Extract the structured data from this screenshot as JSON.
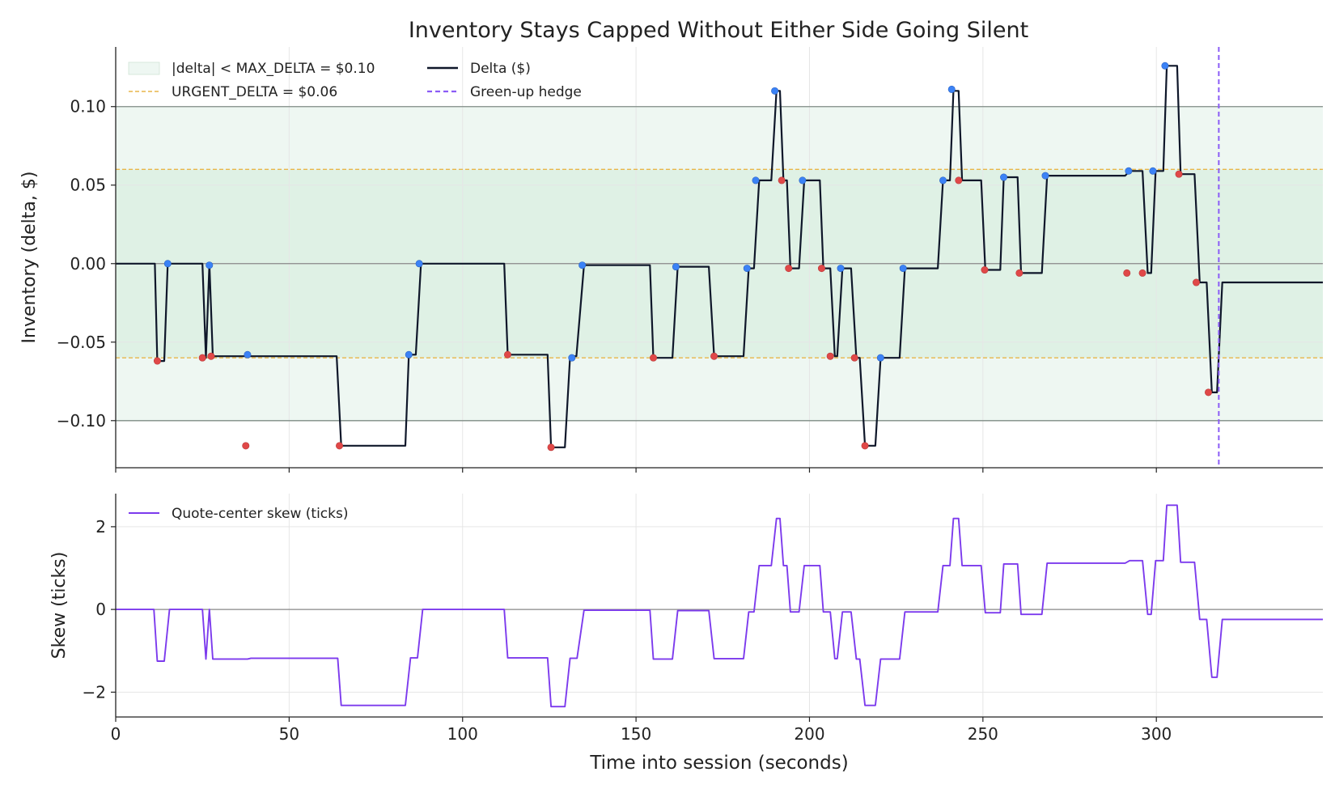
{
  "figure": {
    "title": "Inventory Stays Capped Without Either Side Going Silent"
  },
  "colors": {
    "delta_line": "#0f172a",
    "band_outer": "#eef7f2",
    "band_inner": "#dff1e5",
    "urgent_line": "#e8b64a",
    "hedge_line": "#8b5cf6",
    "skew_line": "#7c3aed",
    "bid_fill": "#3b82f6",
    "ask_fill": "#e04848",
    "ref_line": "#888888",
    "grid": "#e6e6e6"
  },
  "chart_data": [
    {
      "type": "line",
      "ylabel": "Inventory (delta, $)",
      "xlim": [
        0,
        348
      ],
      "ylim": [
        -0.13,
        0.138
      ],
      "yticks": [
        0.1,
        0.05,
        0.0,
        -0.05,
        -0.1
      ],
      "ytick_labels": [
        "0.10",
        "0.05",
        "0.00",
        "−0.05",
        "−0.10"
      ],
      "xticks": [
        0,
        50,
        100,
        150,
        200,
        250,
        300
      ],
      "grid": true,
      "max_delta": 0.1,
      "urgent_delta": 0.06,
      "hedge_time": 318,
      "legend": {
        "band": "|delta| < MAX_DELTA = $0.10",
        "urgent": "URGENT_DELTA = $0.06",
        "delta": "Delta ($)",
        "hedge": "Green-up hedge"
      },
      "series": [
        {
          "name": "Delta ($)",
          "x": [
            0,
            11.3,
            12,
            14,
            15,
            25,
            26,
            27,
            28,
            63.7,
            65,
            83.5,
            84.5,
            86.5,
            88,
            112,
            113,
            124.5,
            125.5,
            129.5,
            131,
            132.8,
            135,
            154,
            155,
            160.5,
            162,
            171,
            172.5,
            181,
            182.5,
            184,
            185.5,
            189,
            190.5,
            191.5,
            192.5,
            193.5,
            194.5,
            197,
            198.5,
            203,
            204,
            206,
            207.3,
            208,
            209.5,
            212,
            213.5,
            214.5,
            216,
            219,
            220.5,
            226,
            227.5,
            237,
            238.5,
            240.5,
            241.5,
            243,
            244,
            249.5,
            250.7,
            255,
            256,
            260,
            261,
            267,
            268.5,
            291,
            292.3,
            296,
            297.5,
            298.5,
            299.8,
            302,
            303,
            306,
            307,
            311,
            312.5,
            314.5,
            316,
            317.5,
            319,
            348
          ],
          "y": [
            0,
            0,
            -0.062,
            -0.062,
            0,
            0,
            -0.06,
            0,
            -0.059,
            -0.059,
            -0.116,
            -0.116,
            -0.058,
            -0.058,
            0,
            0,
            -0.058,
            -0.058,
            -0.117,
            -0.117,
            -0.059,
            -0.059,
            -0.001,
            -0.001,
            -0.06,
            -0.06,
            -0.002,
            -0.002,
            -0.059,
            -0.059,
            -0.003,
            -0.003,
            0.053,
            0.053,
            0.11,
            0.11,
            0.053,
            0.053,
            -0.003,
            -0.003,
            0.053,
            0.053,
            -0.003,
            -0.003,
            -0.059,
            -0.059,
            -0.003,
            -0.003,
            -0.06,
            -0.06,
            -0.116,
            -0.116,
            -0.06,
            -0.06,
            -0.003,
            -0.003,
            0.053,
            0.053,
            0.11,
            0.11,
            0.053,
            0.053,
            -0.004,
            -0.004,
            0.055,
            0.055,
            -0.006,
            -0.006,
            0.056,
            0.056,
            0.059,
            0.059,
            -0.006,
            -0.006,
            0.059,
            0.059,
            0.126,
            0.126,
            0.057,
            0.057,
            -0.012,
            -0.012,
            -0.082,
            -0.082,
            -0.012,
            -0.012
          ]
        },
        {
          "name": "bid fills",
          "x": [
            15,
            27,
            38,
            84.5,
            87.5,
            131.5,
            134.5,
            161.5,
            182,
            184.5,
            190,
            198,
            209,
            220.5,
            227,
            238.5,
            241,
            256,
            268,
            292,
            299,
            302.5
          ],
          "y": [
            0,
            -0.001,
            -0.058,
            -0.058,
            0,
            -0.06,
            -0.001,
            -0.002,
            -0.003,
            0.053,
            0.11,
            0.053,
            -0.003,
            -0.06,
            -0.003,
            0.053,
            0.111,
            0.055,
            0.056,
            0.059,
            0.059,
            0.126
          ]
        },
        {
          "name": "ask fills",
          "x": [
            12,
            25,
            27.5,
            37.5,
            64.5,
            113,
            125.5,
            155,
            172.5,
            192,
            194,
            203.5,
            206,
            213,
            216,
            243,
            250.5,
            260.5,
            291.5,
            296,
            306.5,
            311.5,
            315
          ],
          "y": [
            -0.062,
            -0.06,
            -0.059,
            -0.116,
            -0.116,
            -0.058,
            -0.117,
            -0.06,
            -0.059,
            0.053,
            -0.003,
            -0.003,
            -0.059,
            -0.06,
            -0.116,
            0.053,
            -0.004,
            -0.006,
            -0.006,
            -0.006,
            0.057,
            -0.012,
            -0.082
          ]
        }
      ]
    },
    {
      "type": "line",
      "ylabel": "Skew (ticks)",
      "xlabel": "Time into session (seconds)",
      "xlim": [
        0,
        348
      ],
      "ylim": [
        -2.6,
        2.8
      ],
      "yticks": [
        2,
        0,
        -2
      ],
      "ytick_labels": [
        "2",
        "0",
        "−2"
      ],
      "xticks": [
        0,
        50,
        100,
        150,
        200,
        250,
        300
      ],
      "xtick_labels": [
        "0",
        "50",
        "100",
        "150",
        "200",
        "250",
        "300"
      ],
      "grid": true,
      "legend": {
        "skew": "Quote-center skew (ticks)"
      },
      "series": [
        {
          "name": "Quote-center skew (ticks)",
          "x": [
            0,
            11,
            12,
            14,
            15.5,
            25,
            26,
            27,
            28,
            38,
            39,
            64,
            65,
            83.5,
            85,
            87,
            88.5,
            112,
            113,
            124.5,
            125.5,
            129.5,
            131,
            133,
            135,
            154,
            155,
            160.5,
            162,
            171,
            172.5,
            181,
            182.5,
            184,
            185.5,
            189,
            190.5,
            191.5,
            192.5,
            193.5,
            194.5,
            197,
            198.5,
            203,
            204,
            206,
            207.3,
            208,
            209.5,
            212,
            213.5,
            214.5,
            216,
            219,
            220.5,
            226,
            227.5,
            237,
            238.5,
            240.5,
            241.5,
            243,
            244,
            249.5,
            250.7,
            255,
            256,
            260,
            261,
            267,
            268.5,
            291,
            292.3,
            296,
            297.5,
            298.5,
            299.8,
            302,
            303,
            306,
            307,
            311,
            312.5,
            314.5,
            316,
            317.5,
            319,
            348
          ],
          "y": [
            0,
            0,
            -1.25,
            -1.25,
            0,
            0,
            -1.2,
            0,
            -1.2,
            -1.2,
            -1.18,
            -1.18,
            -2.32,
            -2.32,
            -1.17,
            -1.17,
            0,
            0,
            -1.17,
            -1.17,
            -2.35,
            -2.35,
            -1.18,
            -1.18,
            -0.02,
            -0.02,
            -1.2,
            -1.2,
            -0.03,
            -0.03,
            -1.19,
            -1.19,
            -0.06,
            -0.06,
            1.06,
            1.06,
            2.2,
            2.2,
            1.06,
            1.06,
            -0.06,
            -0.06,
            1.06,
            1.06,
            -0.06,
            -0.06,
            -1.19,
            -1.19,
            -0.06,
            -0.06,
            -1.2,
            -1.2,
            -2.32,
            -2.32,
            -1.2,
            -1.2,
            -0.06,
            -0.06,
            1.06,
            1.06,
            2.2,
            2.2,
            1.06,
            1.06,
            -0.08,
            -0.08,
            1.1,
            1.1,
            -0.12,
            -0.12,
            1.12,
            1.12,
            1.18,
            1.18,
            -0.12,
            -0.12,
            1.18,
            1.18,
            2.52,
            2.52,
            1.14,
            1.14,
            -0.24,
            -0.24,
            -1.64,
            -1.64,
            -0.24,
            -0.24
          ]
        }
      ]
    }
  ]
}
